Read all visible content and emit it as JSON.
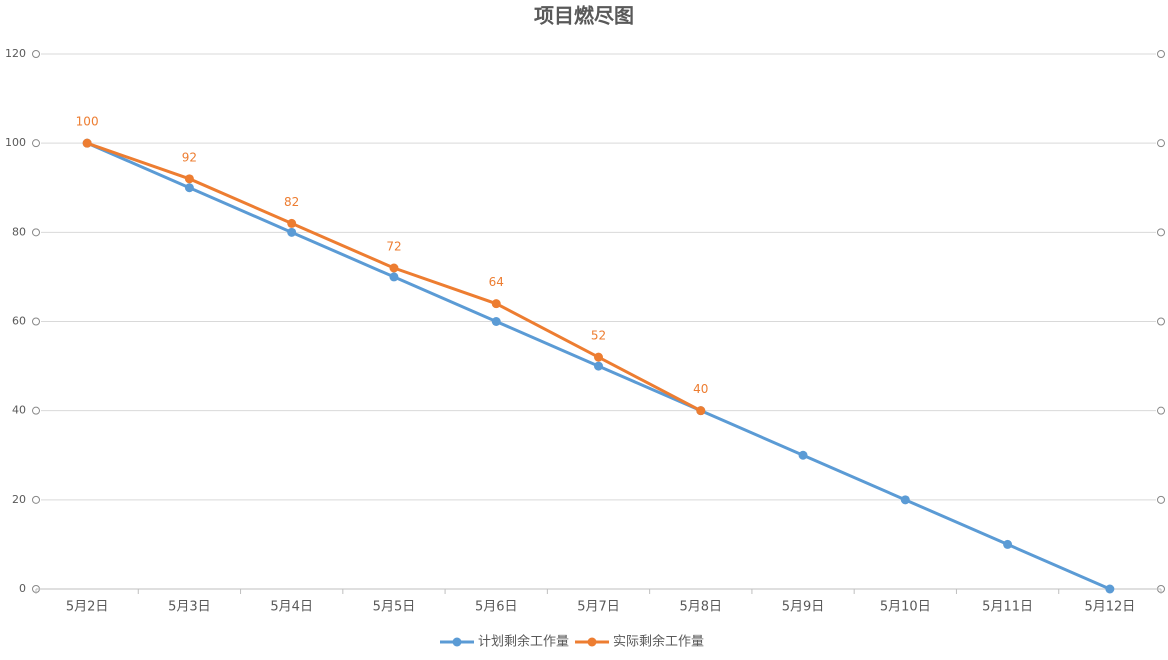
{
  "chart_data": {
    "type": "line",
    "title": "项目燃尽图",
    "categories": [
      "5月2日",
      "5月3日",
      "5月4日",
      "5月5日",
      "5月6日",
      "5月7日",
      "5月8日",
      "5月9日",
      "5月10日",
      "5月11日",
      "5月12日"
    ],
    "series": [
      {
        "name": "计划剩余工作量",
        "color": "#5b9bd5",
        "values": [
          100,
          90,
          80,
          70,
          60,
          50,
          40,
          30,
          20,
          10,
          0
        ]
      },
      {
        "name": "实际剩余工作量",
        "color": "#ed7d31",
        "values": [
          100,
          92,
          82,
          72,
          64,
          52,
          40,
          null,
          null,
          null,
          null
        ],
        "data_labels": true
      }
    ],
    "ylim": [
      0,
      120
    ],
    "yticks": [
      0,
      20,
      40,
      60,
      80,
      100,
      120
    ],
    "grid": true,
    "legend": "bottom"
  }
}
